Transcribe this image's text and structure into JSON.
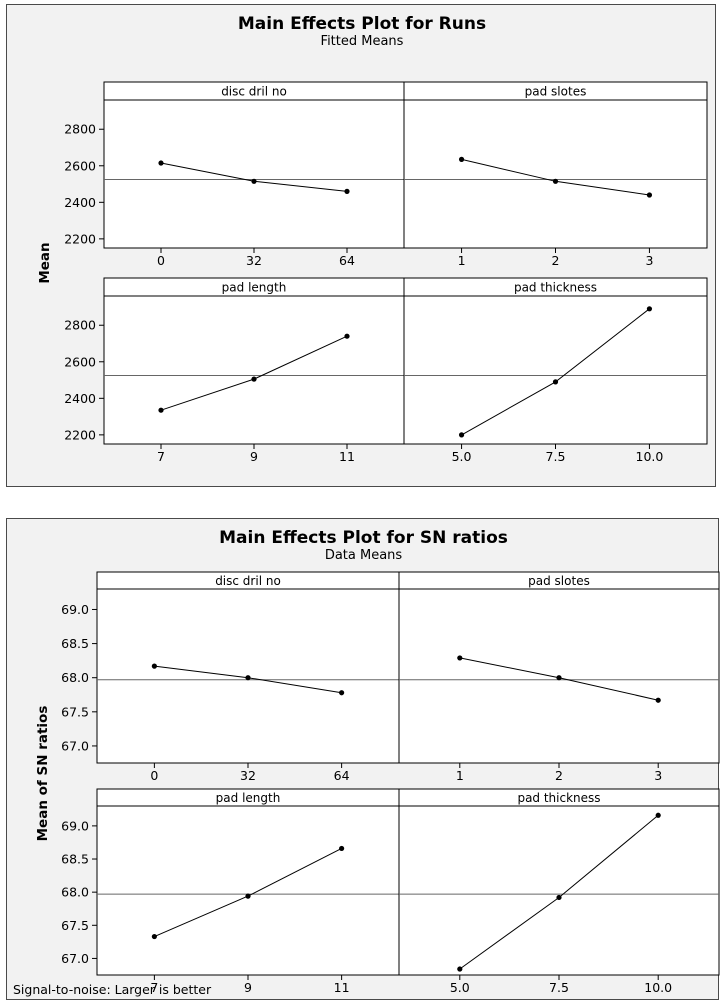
{
  "chart_data": [
    {
      "type": "line",
      "title": "Main Effects Plot for Runs",
      "subtitle": "Fitted Means",
      "ylabel": "Mean",
      "footnote": "",
      "ylim": [
        2150,
        2960
      ],
      "yticks": [
        2200,
        2400,
        2600,
        2800
      ],
      "yticklabels": [
        "2200",
        "2400",
        "2600",
        "2800"
      ],
      "reference_line": 2525,
      "panels": [
        {
          "name": "disc dril no",
          "x_labels": [
            "0",
            "32",
            "64"
          ],
          "values": [
            2615,
            2515,
            2460
          ]
        },
        {
          "name": "pad slotes",
          "x_labels": [
            "1",
            "2",
            "3"
          ],
          "values": [
            2635,
            2515,
            2440
          ]
        },
        {
          "name": "pad length",
          "x_labels": [
            "7",
            "9",
            "11"
          ],
          "values": [
            2335,
            2505,
            2740
          ]
        },
        {
          "name": "pad thickness",
          "x_labels": [
            "5.0",
            "7.5",
            "10.0"
          ],
          "values": [
            2200,
            2490,
            2890
          ]
        }
      ]
    },
    {
      "type": "line",
      "title": "Main Effects Plot for SN ratios",
      "subtitle": "Data Means",
      "ylabel": "Mean of SN ratios",
      "footnote": "Signal-to-noise: Larger is better",
      "ylim": [
        66.75,
        69.3
      ],
      "yticks": [
        67.0,
        67.5,
        68.0,
        68.5,
        69.0
      ],
      "yticklabels": [
        "67.0",
        "67.5",
        "68.0",
        "68.5",
        "69.0"
      ],
      "reference_line": 67.97,
      "panels": [
        {
          "name": "disc dril no",
          "x_labels": [
            "0",
            "32",
            "64"
          ],
          "values": [
            68.17,
            68.0,
            67.78
          ]
        },
        {
          "name": "pad slotes",
          "x_labels": [
            "1",
            "2",
            "3"
          ],
          "values": [
            68.29,
            68.0,
            67.67
          ]
        },
        {
          "name": "pad length",
          "x_labels": [
            "7",
            "9",
            "11"
          ],
          "values": [
            67.33,
            67.94,
            68.66
          ]
        },
        {
          "name": "pad thickness",
          "x_labels": [
            "5.0",
            "7.5",
            "10.0"
          ],
          "values": [
            66.84,
            67.92,
            69.16
          ]
        }
      ]
    }
  ]
}
